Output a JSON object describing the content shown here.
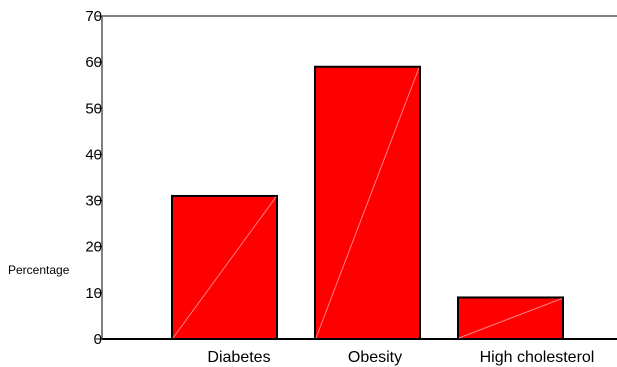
{
  "chart_data": {
    "type": "bar",
    "categories": [
      "Diabetes",
      "Obesity",
      "High cholesterol"
    ],
    "values": [
      31,
      59,
      9
    ],
    "xlabel": "",
    "ylabel": "Percentage",
    "ylim": [
      0,
      70
    ],
    "yticks": [
      "0",
      "10",
      "20",
      "30",
      "40",
      "50",
      "60",
      "70"
    ],
    "grid": false,
    "bar_color": "#ff0000",
    "bar_stroke": "#000000"
  }
}
